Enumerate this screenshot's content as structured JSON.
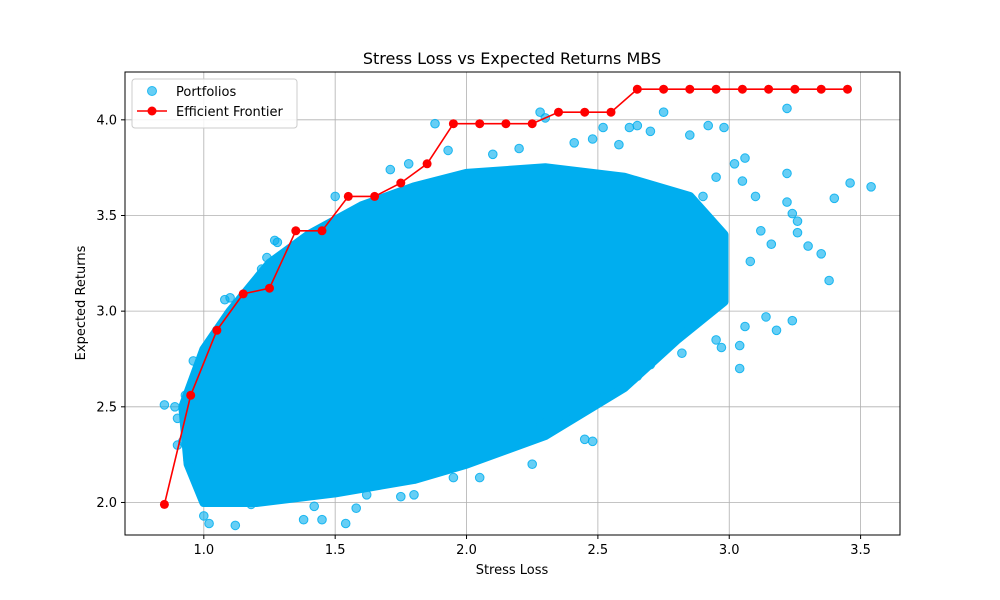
{
  "chart_data": {
    "type": "scatter",
    "title": "Stress Loss vs Expected Returns MBS",
    "xlabel": "Stress Loss",
    "ylabel": "Expected Returns",
    "xlim": [
      0.7,
      3.65
    ],
    "ylim": [
      1.83,
      4.25
    ],
    "grid": true,
    "legend_position": "top-left",
    "x_ticks": [
      1.0,
      1.5,
      2.0,
      2.5,
      3.0,
      3.5
    ],
    "x_tick_labels": [
      "1.0",
      "1.5",
      "2.0",
      "2.5",
      "3.0",
      "3.5"
    ],
    "y_ticks": [
      2.0,
      2.5,
      3.0,
      3.5,
      4.0
    ],
    "y_tick_labels": [
      "2.0",
      "2.5",
      "3.0",
      "3.5",
      "4.0"
    ],
    "series": [
      {
        "name": "Portfolios",
        "kind": "scatter",
        "color": "#00aeef",
        "cloud_outline": [
          [
            1.0,
            2.0
          ],
          [
            1.2,
            2.0
          ],
          [
            1.5,
            2.05
          ],
          [
            1.8,
            2.12
          ],
          [
            2.0,
            2.2
          ],
          [
            2.3,
            2.35
          ],
          [
            2.6,
            2.6
          ],
          [
            2.8,
            2.85
          ],
          [
            2.98,
            3.05
          ],
          [
            2.98,
            3.4
          ],
          [
            2.85,
            3.6
          ],
          [
            2.6,
            3.7
          ],
          [
            2.3,
            3.75
          ],
          [
            2.0,
            3.72
          ],
          [
            1.8,
            3.65
          ],
          [
            1.6,
            3.55
          ],
          [
            1.4,
            3.4
          ],
          [
            1.25,
            3.25
          ],
          [
            1.1,
            3.0
          ],
          [
            1.0,
            2.8
          ],
          [
            0.92,
            2.5
          ],
          [
            0.94,
            2.2
          ]
        ],
        "points": [
          [
            0.85,
            2.51
          ],
          [
            0.89,
            2.5
          ],
          [
            0.9,
            2.44
          ],
          [
            0.93,
            2.56
          ],
          [
            0.96,
            2.74
          ],
          [
            0.97,
            2.64
          ],
          [
            0.92,
            2.32
          ],
          [
            0.9,
            2.3
          ],
          [
            0.94,
            2.22
          ],
          [
            0.95,
            2.18
          ],
          [
            1.0,
            1.93
          ],
          [
            1.02,
            1.89
          ],
          [
            1.12,
            1.88
          ],
          [
            1.18,
            1.99
          ],
          [
            1.38,
            1.91
          ],
          [
            1.45,
            1.91
          ],
          [
            1.54,
            1.89
          ],
          [
            1.58,
            1.97
          ],
          [
            1.75,
            2.03
          ],
          [
            1.8,
            2.04
          ],
          [
            2.05,
            2.13
          ],
          [
            2.25,
            2.2
          ],
          [
            2.45,
            2.33
          ],
          [
            2.48,
            2.32
          ],
          [
            2.38,
            2.45
          ],
          [
            2.52,
            2.55
          ],
          [
            2.65,
            2.66
          ],
          [
            2.7,
            2.72
          ],
          [
            2.82,
            2.78
          ],
          [
            2.95,
            2.85
          ],
          [
            2.97,
            2.81
          ],
          [
            3.04,
            2.82
          ],
          [
            3.04,
            2.7
          ],
          [
            3.06,
            2.92
          ],
          [
            3.14,
            2.97
          ],
          [
            3.18,
            2.9
          ],
          [
            3.24,
            2.95
          ],
          [
            3.38,
            3.16
          ],
          [
            3.35,
            3.3
          ],
          [
            3.3,
            3.34
          ],
          [
            3.26,
            3.47
          ],
          [
            3.24,
            3.51
          ],
          [
            3.22,
            3.57
          ],
          [
            3.26,
            3.41
          ],
          [
            3.16,
            3.35
          ],
          [
            3.12,
            3.42
          ],
          [
            3.08,
            3.26
          ],
          [
            3.1,
            3.6
          ],
          [
            3.06,
            3.8
          ],
          [
            3.05,
            3.68
          ],
          [
            3.02,
            3.77
          ],
          [
            3.22,
            3.72
          ],
          [
            3.4,
            3.59
          ],
          [
            3.46,
            3.67
          ],
          [
            3.54,
            3.65
          ],
          [
            3.22,
            4.06
          ],
          [
            2.92,
            3.97
          ],
          [
            2.98,
            3.96
          ],
          [
            2.85,
            3.92
          ],
          [
            2.75,
            4.04
          ],
          [
            2.7,
            3.94
          ],
          [
            2.62,
            3.96
          ],
          [
            2.52,
            3.96
          ],
          [
            2.48,
            3.9
          ],
          [
            2.41,
            3.88
          ],
          [
            2.28,
            4.04
          ],
          [
            2.3,
            4.01
          ],
          [
            2.2,
            3.85
          ],
          [
            2.1,
            3.82
          ],
          [
            1.88,
            3.98
          ],
          [
            1.78,
            3.77
          ],
          [
            1.71,
            3.74
          ],
          [
            1.93,
            3.84
          ],
          [
            2.65,
            3.97
          ],
          [
            2.58,
            3.87
          ],
          [
            1.5,
            3.6
          ],
          [
            1.28,
            3.36
          ],
          [
            1.27,
            3.37
          ],
          [
            1.22,
            3.22
          ],
          [
            1.24,
            3.28
          ],
          [
            1.1,
            3.07
          ],
          [
            1.08,
            3.06
          ],
          [
            1.05,
            2.9
          ],
          [
            2.9,
            3.6
          ],
          [
            2.95,
            3.7
          ],
          [
            2.28,
            2.42
          ],
          [
            2.2,
            2.31
          ],
          [
            1.95,
            2.13
          ],
          [
            1.62,
            2.04
          ],
          [
            1.42,
            1.98
          ]
        ]
      },
      {
        "name": "Efficient Frontier",
        "kind": "line",
        "color": "#ff0000",
        "x": [
          0.85,
          0.95,
          1.05,
          1.15,
          1.25,
          1.35,
          1.45,
          1.55,
          1.65,
          1.75,
          1.85,
          1.95,
          2.05,
          2.15,
          2.25,
          2.35,
          2.45,
          2.55,
          2.65,
          2.75,
          2.85,
          2.95,
          3.05,
          3.15,
          3.25,
          3.35,
          3.45
        ],
        "y": [
          1.99,
          2.56,
          2.9,
          3.09,
          3.12,
          3.42,
          3.42,
          3.6,
          3.6,
          3.67,
          3.77,
          3.98,
          3.98,
          3.98,
          3.98,
          4.04,
          4.04,
          4.04,
          4.16,
          4.16,
          4.16,
          4.16,
          4.16,
          4.16,
          4.16,
          4.16,
          4.16
        ]
      }
    ]
  }
}
